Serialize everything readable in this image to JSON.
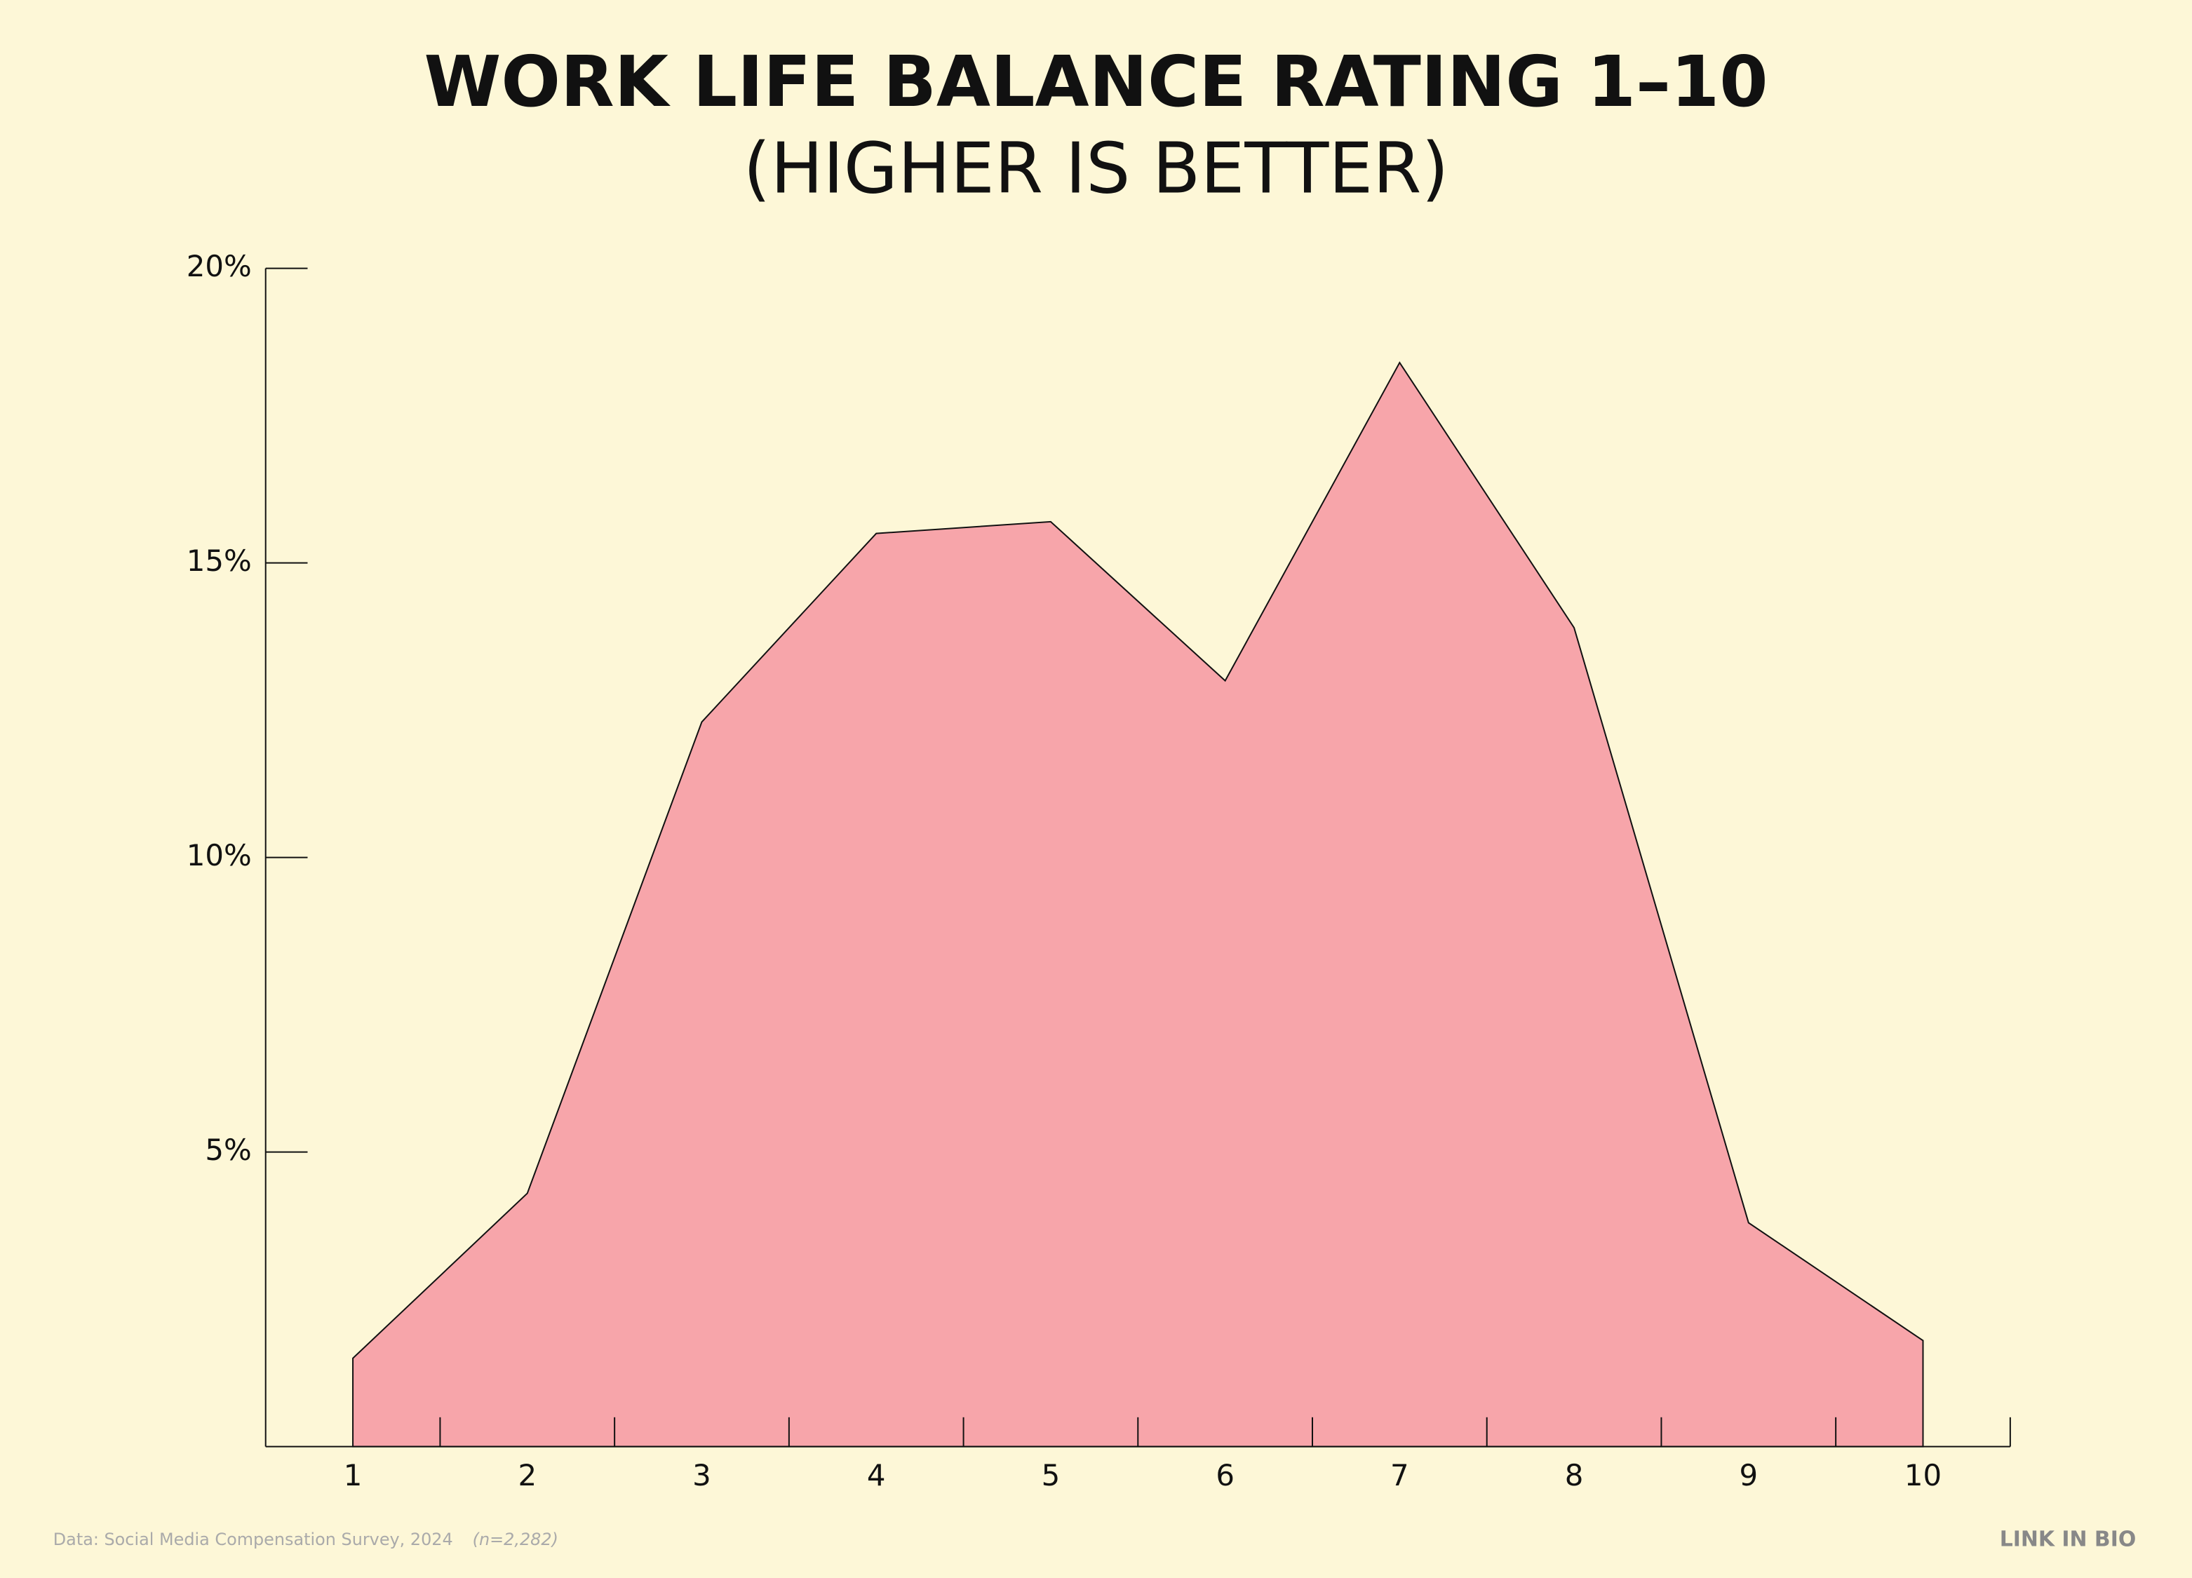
{
  "chart_data": {
    "type": "area",
    "title": "WORK LIFE BALANCE RATING 1–10",
    "subtitle": "(HIGHER IS BETTER)",
    "categories": [
      "1",
      "2",
      "3",
      "4",
      "5",
      "6",
      "7",
      "8",
      "9",
      "10"
    ],
    "values": [
      1.5,
      4.3,
      12.3,
      15.5,
      15.7,
      13.0,
      18.4,
      13.9,
      3.8,
      1.8
    ],
    "color": "#f7a5aa",
    "ylim": [
      0,
      20
    ],
    "yticks": [
      {
        "value": 5,
        "label": "5%"
      },
      {
        "value": 10,
        "label": "10%"
      },
      {
        "value": 15,
        "label": "15%"
      },
      {
        "value": 20,
        "label": "20%"
      }
    ],
    "source": "Data: Social Media Compensation Survey, 2024",
    "note": "(n=2,282)",
    "brand": "LINK IN BIO"
  }
}
